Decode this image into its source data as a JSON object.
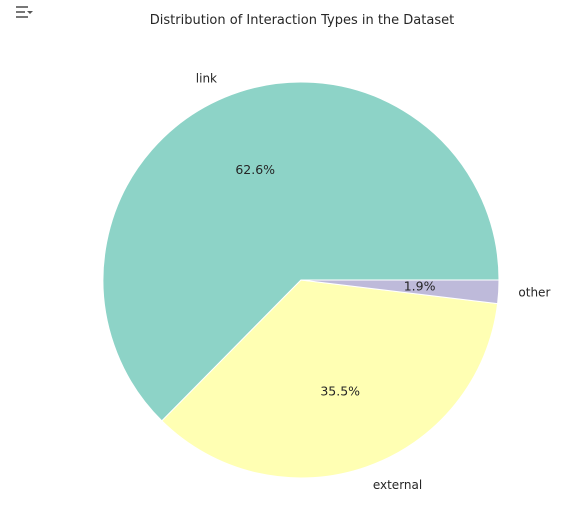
{
  "toolbar": {
    "icon": "filter-menu-icon"
  },
  "chart_data": {
    "type": "pie",
    "title": "Distribution of Interaction Types in the Dataset",
    "slices": [
      {
        "label": "link",
        "value": 62.6,
        "pct_label": "62.6%",
        "color": "#8dd3c7"
      },
      {
        "label": "external",
        "value": 35.5,
        "pct_label": "35.5%",
        "color": "#ffffb3"
      },
      {
        "label": "other",
        "value": 1.9,
        "pct_label": "1.9%",
        "color": "#bebada"
      }
    ],
    "start_angle_deg": 0,
    "direction": "counterclockwise",
    "edge_color": "#ffffff"
  }
}
